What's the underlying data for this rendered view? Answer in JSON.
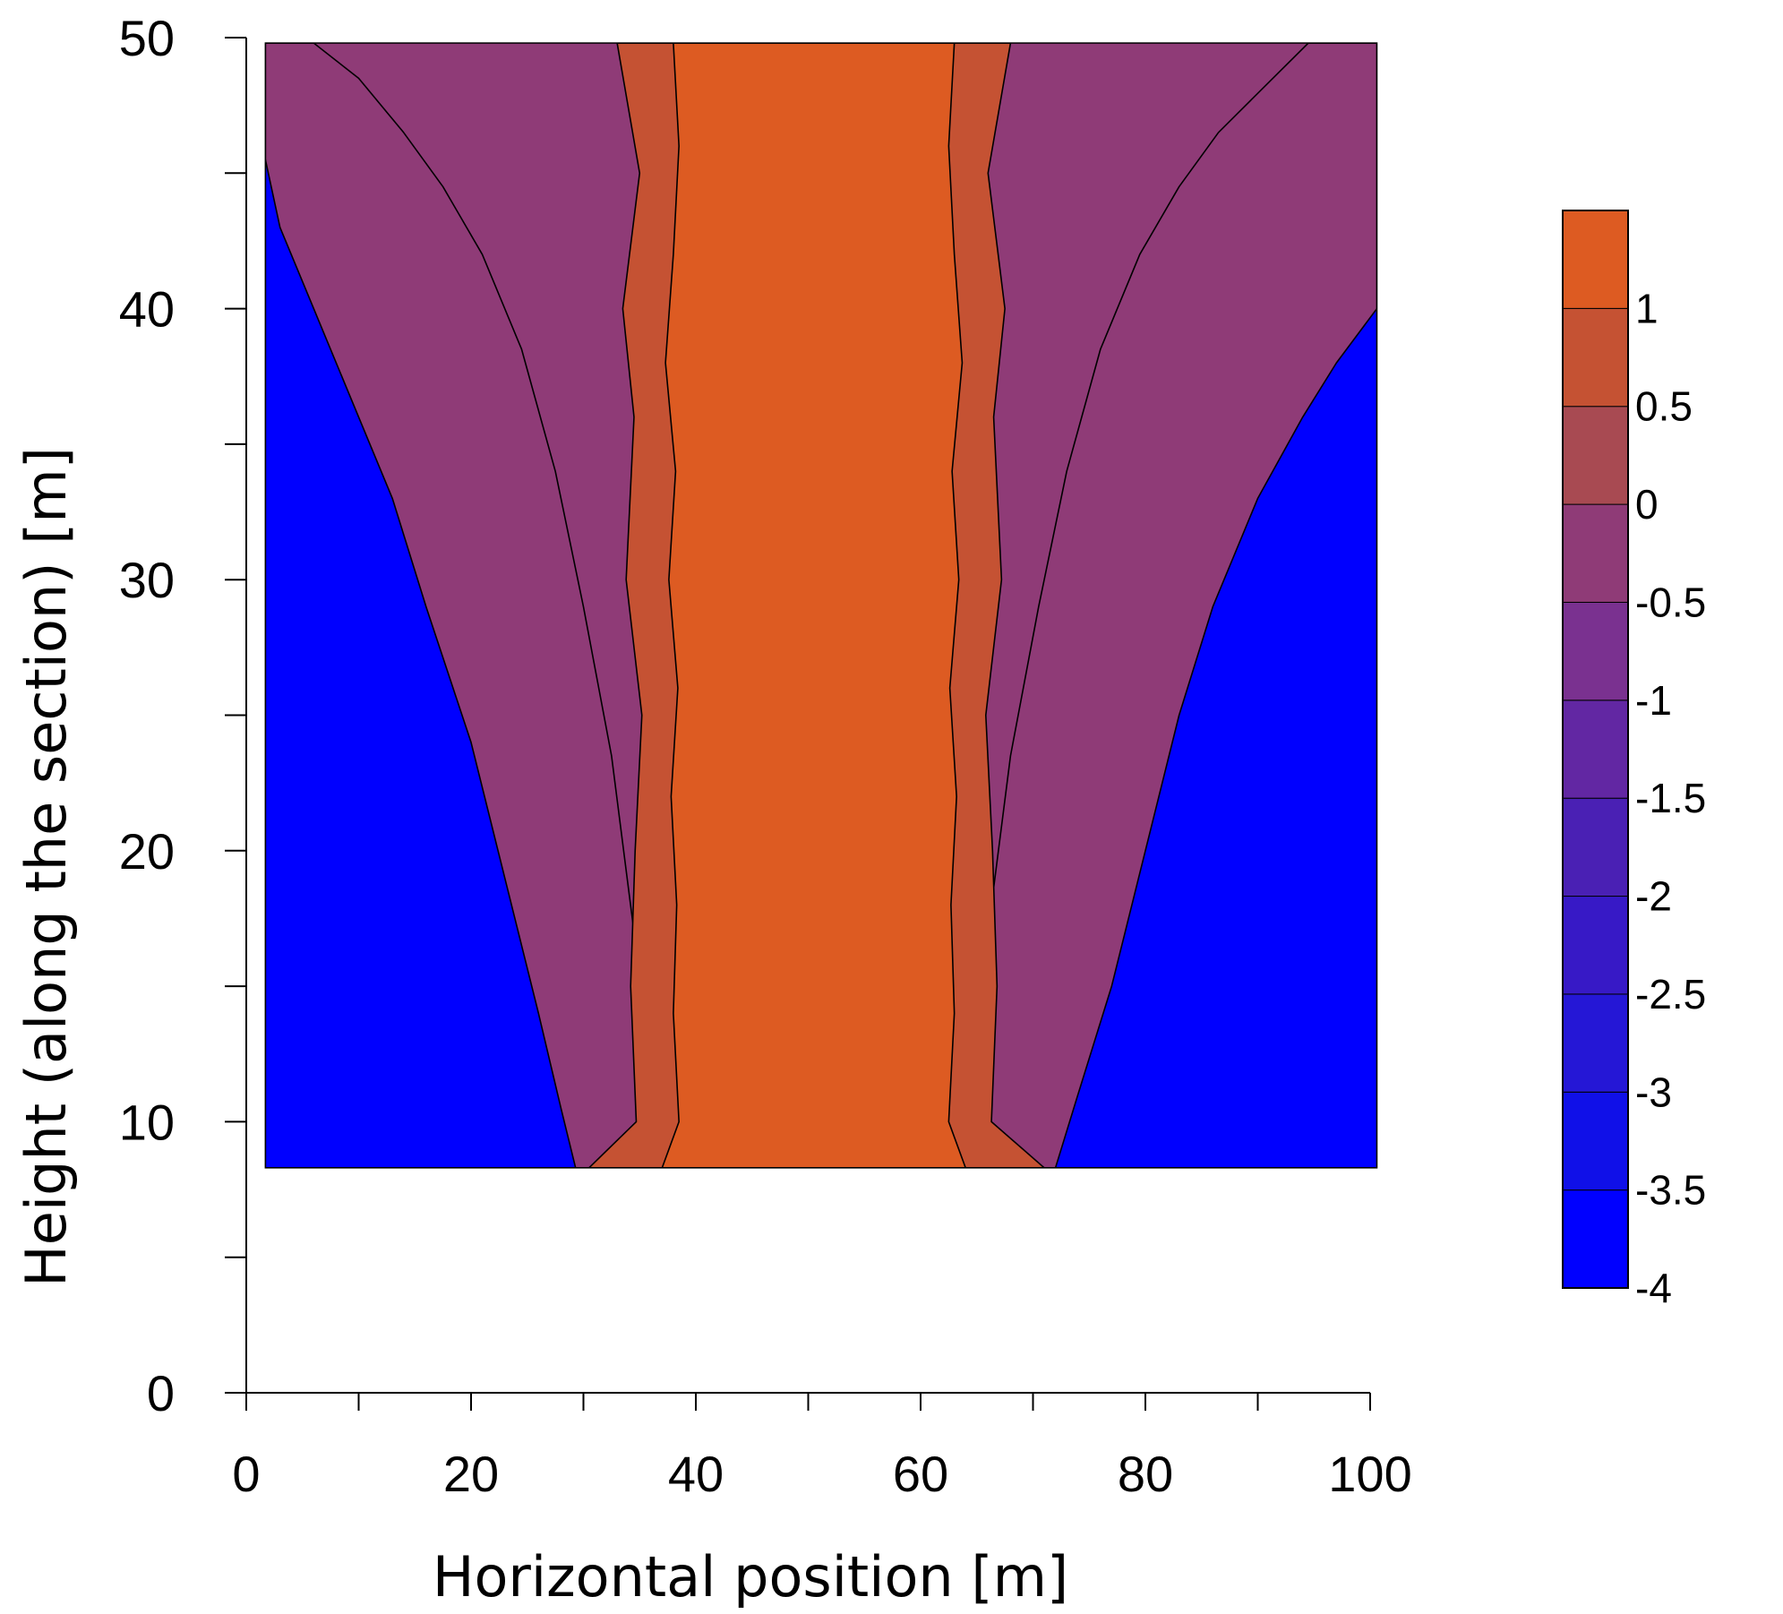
{
  "chart_data": {
    "type": "contour",
    "xlabel": "Horizontal position [m]",
    "ylabel": "Height (along the section) [m]",
    "xlim": [
      0,
      100
    ],
    "ylim": [
      0,
      50
    ],
    "x_ticks": [
      0,
      20,
      40,
      60,
      80,
      100
    ],
    "x_tick_labels": [
      "0",
      "20",
      "40",
      "60",
      "80",
      "100"
    ],
    "x_minor_step": 10,
    "y_ticks": [
      0,
      10,
      20,
      30,
      40,
      50
    ],
    "y_tick_labels": [
      "0",
      "10",
      "20",
      "30",
      "40",
      "50"
    ],
    "y_minor_step": 5,
    "data_extent": {
      "x": [
        1.7,
        100.6
      ],
      "y": [
        8.3,
        49.8
      ]
    },
    "colorbar": {
      "placement": "right",
      "min": -4,
      "max": 1.5,
      "levels": [
        -4,
        -3.5,
        -3,
        -2.5,
        -2,
        -1.5,
        -1,
        -0.5,
        0,
        0.5,
        1
      ],
      "labels": [
        "-4",
        "-3.5",
        "-3",
        "-2.5",
        "-2",
        "-1.5",
        "-1",
        "-0.5",
        "0",
        "0.5",
        "1"
      ],
      "colors": [
        "#0000ff",
        "#1010e8",
        "#2517d6",
        "#3719c6",
        "#4a20b4",
        "#6227a3",
        "#7a3190",
        "#8f3b77",
        "#a84a52",
        "#c55233",
        "#dd5b22",
        "#ff6a00"
      ]
    },
    "regions": [
      {
        "level": -4,
        "left_boundary": [
          [
            1.7,
            45.5
          ],
          [
            3,
            43
          ],
          [
            6,
            40
          ],
          [
            10,
            36
          ],
          [
            13,
            33
          ],
          [
            16,
            29
          ],
          [
            20,
            24
          ],
          [
            23,
            19
          ],
          [
            26,
            14
          ],
          [
            28,
            10.5
          ],
          [
            29.3,
            8.3
          ]
        ],
        "right_boundary": [
          [
            72,
            8.3
          ],
          [
            74,
            11
          ],
          [
            77,
            15
          ],
          [
            80,
            20
          ],
          [
            83,
            25
          ],
          [
            86,
            29
          ],
          [
            90,
            33
          ],
          [
            94,
            36
          ],
          [
            97,
            38
          ],
          [
            100.6,
            40
          ]
        ]
      },
      {
        "level": -3.5,
        "left_boundary": [
          [
            1.7,
            45.8
          ],
          [
            3.5,
            43.5
          ],
          [
            6.5,
            40.5
          ],
          [
            10.5,
            36.5
          ],
          [
            13.5,
            33.5
          ],
          [
            16.5,
            29.5
          ],
          [
            20.5,
            24.5
          ],
          [
            23.5,
            19.5
          ],
          [
            26.5,
            14.5
          ],
          [
            28.5,
            11
          ],
          [
            29.6,
            8.3
          ]
        ],
        "right_boundary": [
          [
            71.7,
            8.3
          ],
          [
            73.6,
            11.3
          ],
          [
            76.6,
            15.3
          ],
          [
            79.6,
            20.3
          ],
          [
            82.6,
            25.3
          ],
          [
            85.6,
            29.5
          ],
          [
            89.6,
            33.5
          ],
          [
            93.6,
            36.5
          ],
          [
            96.6,
            38.4
          ],
          [
            100.6,
            40.3
          ]
        ]
      },
      {
        "level": -3,
        "left_boundary": [
          [
            1.7,
            46.1
          ],
          [
            4,
            44
          ],
          [
            7,
            41
          ],
          [
            11,
            37
          ],
          [
            14,
            34
          ],
          [
            17,
            30
          ],
          [
            21,
            25
          ],
          [
            24,
            20
          ],
          [
            27,
            15
          ],
          [
            28.8,
            11.5
          ],
          [
            29.9,
            8.3
          ]
        ],
        "right_boundary": [
          [
            71.4,
            8.3
          ],
          [
            73.2,
            11.6
          ],
          [
            76.2,
            15.6
          ],
          [
            79.2,
            20.6
          ],
          [
            82.2,
            25.6
          ],
          [
            85.2,
            30
          ],
          [
            89.2,
            34
          ],
          [
            93.2,
            37
          ],
          [
            96.2,
            38.8
          ],
          [
            100.6,
            40.6
          ]
        ]
      },
      {
        "level": -2.5,
        "left_boundary": [
          [
            1.7,
            46.4
          ],
          [
            4.5,
            44.5
          ],
          [
            7.5,
            41.5
          ],
          [
            11.5,
            37.5
          ],
          [
            14.5,
            34.5
          ],
          [
            17.5,
            30.5
          ],
          [
            21.5,
            25.5
          ],
          [
            24.5,
            20.5
          ],
          [
            27.5,
            15.5
          ],
          [
            29.1,
            12
          ],
          [
            30.2,
            8.3
          ]
        ],
        "right_boundary": [
          [
            71.1,
            8.3
          ],
          [
            72.8,
            11.9
          ],
          [
            75.8,
            15.9
          ],
          [
            78.8,
            20.9
          ],
          [
            81.8,
            25.9
          ],
          [
            84.8,
            30.5
          ],
          [
            88.8,
            34.5
          ],
          [
            92.8,
            37.5
          ],
          [
            95.8,
            39.2
          ],
          [
            100.6,
            40.9
          ]
        ]
      },
      {
        "level": -2,
        "left_boundary": [
          [
            1.7,
            47
          ],
          [
            5.5,
            45.5
          ],
          [
            8.5,
            42.5
          ],
          [
            12.5,
            39
          ],
          [
            15.5,
            36
          ],
          [
            18.5,
            32
          ],
          [
            22.5,
            27
          ],
          [
            25.5,
            22
          ],
          [
            28.3,
            17
          ],
          [
            30,
            13
          ],
          [
            30.8,
            8.3
          ]
        ],
        "right_boundary": [
          [
            70.5,
            8.3
          ],
          [
            72,
            12.5
          ],
          [
            75,
            16.5
          ],
          [
            78,
            21.5
          ],
          [
            81,
            26.5
          ],
          [
            84,
            31.5
          ],
          [
            88,
            35.5
          ],
          [
            92,
            38.5
          ],
          [
            95,
            41
          ],
          [
            100.6,
            43
          ]
        ]
      },
      {
        "level": -1.5,
        "left_boundary": [
          [
            1.7,
            47.8
          ],
          [
            7,
            46.5
          ],
          [
            10,
            44
          ],
          [
            13.5,
            41
          ],
          [
            16.5,
            38
          ],
          [
            19.5,
            34
          ],
          [
            23.5,
            29
          ],
          [
            26.5,
            24
          ],
          [
            29,
            19
          ],
          [
            30.8,
            14
          ],
          [
            31.5,
            8.3
          ]
        ],
        "right_boundary": [
          [
            69.8,
            8.3
          ],
          [
            71,
            13.5
          ],
          [
            74,
            17.5
          ],
          [
            77,
            22.5
          ],
          [
            80,
            27.5
          ],
          [
            83,
            32.5
          ],
          [
            87,
            37
          ],
          [
            91,
            40.5
          ],
          [
            94,
            43.5
          ],
          [
            100.6,
            46
          ]
        ]
      },
      {
        "level": -1,
        "left_boundary": [
          [
            1.7,
            48.6
          ],
          [
            9,
            47.5
          ],
          [
            12.5,
            45.5
          ],
          [
            16,
            43
          ],
          [
            19,
            40
          ],
          [
            22,
            36.5
          ],
          [
            25.5,
            32
          ],
          [
            28.5,
            27
          ],
          [
            30.8,
            22
          ],
          [
            32.3,
            16
          ],
          [
            33,
            8.3
          ]
        ],
        "right_boundary": [
          [
            67.5,
            8.3
          ],
          [
            68.5,
            16
          ],
          [
            71.5,
            21
          ],
          [
            74,
            26
          ],
          [
            77,
            31
          ],
          [
            80,
            35.5
          ],
          [
            84,
            39.5
          ],
          [
            88,
            43
          ],
          [
            92,
            46.5
          ],
          [
            100.6,
            48.6
          ]
        ]
      },
      {
        "level": -0.5,
        "left_boundary": [
          [
            6,
            49.8
          ],
          [
            10,
            48.5
          ],
          [
            14,
            46.5
          ],
          [
            17.5,
            44.5
          ],
          [
            21,
            42
          ],
          [
            24.5,
            38.5
          ],
          [
            27.5,
            34
          ],
          [
            30,
            29
          ],
          [
            32.5,
            23.5
          ],
          [
            34.5,
            17
          ],
          [
            35.5,
            8.3
          ]
        ],
        "right_boundary": [
          [
            65,
            8.3
          ],
          [
            66,
            17
          ],
          [
            68,
            23.5
          ],
          [
            70.5,
            29
          ],
          [
            73,
            34
          ],
          [
            76,
            38.5
          ],
          [
            79.5,
            42
          ],
          [
            83,
            44.5
          ],
          [
            86.5,
            46.5
          ],
          [
            94.5,
            49.8
          ]
        ]
      },
      {
        "level": 0,
        "left_boundary": [
          [
            33,
            49.8
          ],
          [
            35,
            45
          ],
          [
            33.5,
            40
          ],
          [
            34.5,
            36
          ],
          [
            33.8,
            30
          ],
          [
            35.2,
            25
          ],
          [
            34.6,
            20
          ],
          [
            34.2,
            15
          ],
          [
            34.7,
            10
          ],
          [
            30.5,
            8.3
          ]
        ],
        "right_boundary": [
          [
            71,
            8.3
          ],
          [
            66.3,
            10
          ],
          [
            66.8,
            15
          ],
          [
            66.4,
            20
          ],
          [
            65.8,
            25
          ],
          [
            67.2,
            30
          ],
          [
            66.5,
            36
          ],
          [
            67.5,
            40
          ],
          [
            66,
            45
          ],
          [
            68,
            49.8
          ]
        ]
      },
      {
        "level": 0.5,
        "left_boundary": [
          [
            38,
            49.8
          ],
          [
            38.5,
            46
          ],
          [
            38,
            42
          ],
          [
            37.3,
            38
          ],
          [
            38.2,
            34
          ],
          [
            37.6,
            30
          ],
          [
            38.4,
            26
          ],
          [
            37.8,
            22
          ],
          [
            38.3,
            18
          ],
          [
            38,
            14
          ],
          [
            38.5,
            10
          ],
          [
            37,
            8.3
          ]
        ],
        "right_boundary": [
          [
            64,
            8.3
          ],
          [
            62.5,
            10
          ],
          [
            63,
            14
          ],
          [
            62.7,
            18
          ],
          [
            63.2,
            22
          ],
          [
            62.6,
            26
          ],
          [
            63.4,
            30
          ],
          [
            62.8,
            34
          ],
          [
            63.7,
            38
          ],
          [
            63,
            42
          ],
          [
            62.5,
            46
          ],
          [
            63,
            49.8
          ]
        ]
      }
    ]
  }
}
